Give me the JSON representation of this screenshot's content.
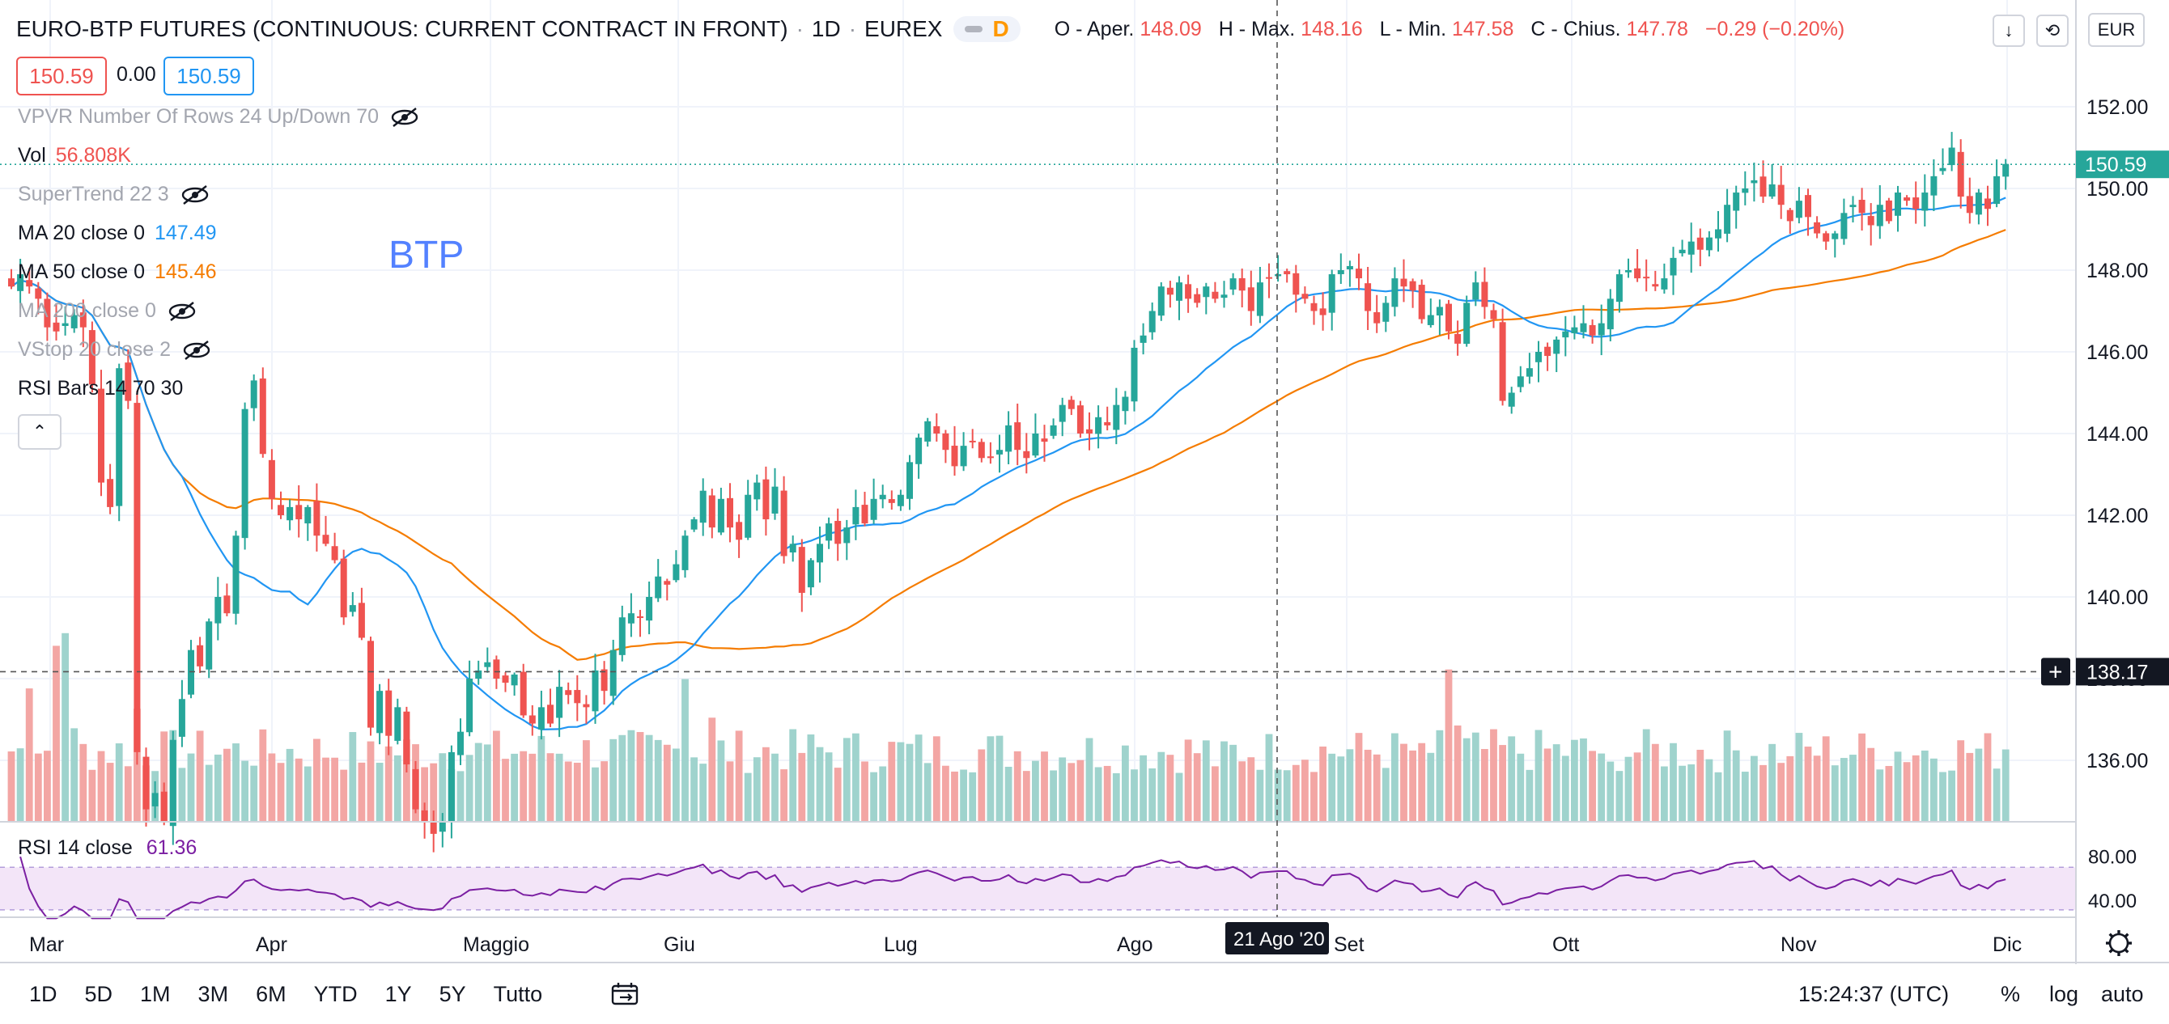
{
  "header": {
    "symbol": "EURO-BTP FUTURES (CONTINUOUS: CURRENT CONTRACT IN FRONT)",
    "interval": "1D",
    "exchange": "EUREX",
    "market_status": "D",
    "ohlc": {
      "open_label": "O - Aper.",
      "open": "148.09",
      "high_label": "H - Max.",
      "high": "148.16",
      "low_label": "L - Min.",
      "low": "147.58",
      "close_label": "C - Chius.",
      "close": "147.78",
      "change": "−0.29 (−0.20%)"
    }
  },
  "toolbar": {
    "currency": "EUR",
    "download_icon": "arrow-down-icon",
    "replay_icon": "replay-icon"
  },
  "order": {
    "sell_price": "150.59",
    "spread": "0.00",
    "buy_price": "150.59"
  },
  "indicators": {
    "vpvr": "VPVR Number Of Rows 24 Up/Down 70",
    "vol_label": "Vol",
    "vol_value": "56.808K",
    "supertrend": "SuperTrend 22 3",
    "ma20_label": "MA 20 close 0",
    "ma20_value": "147.49",
    "ma50_label": "MA 50 close 0",
    "ma50_value": "145.46",
    "ma200_label": "MA 200 close 0",
    "vstop_label": "VStop 20 close 2",
    "rsibars_label": "RSI Bars 14 70 30",
    "collapse_icon": "chevron-up-icon"
  },
  "drawing_text": "BTP",
  "rsi": {
    "label": "RSI 14 close",
    "value": "61.36"
  },
  "bottom_bar": {
    "timeframes": [
      "1D",
      "5D",
      "1M",
      "3M",
      "6M",
      "YTD",
      "1Y",
      "5Y",
      "Tutto"
    ],
    "calendar_icon": "calendar-range-icon",
    "clock": "15:24:37 (UTC)",
    "percent": "%",
    "log": "log",
    "auto": "auto"
  },
  "colors": {
    "up": "#26a69a",
    "down": "#ef5350",
    "ma20": "#2196f3",
    "ma50": "#f57c00",
    "rsi": "#7b1fa2",
    "vol_up": "#9fd3cd",
    "vol_down": "#f3a6a4"
  },
  "chart_data": {
    "type": "candlestick",
    "x_ticks": [
      "Mar",
      "Apr",
      "Maggio",
      "Giu",
      "Lug",
      "Ago",
      "Set",
      "Ott",
      "Nov",
      "Dic"
    ],
    "y_ticks": [
      "136.00",
      "138.00",
      "140.00",
      "142.00",
      "144.00",
      "146.00",
      "148.00",
      "150.00",
      "152.00"
    ],
    "ylim": [
      134.5,
      153.2
    ],
    "last_price": "150.59",
    "crosshair_price": "138.17",
    "crosshair_date": "21 Ago '20",
    "rsi_ticks": [
      "80.00",
      "40.00"
    ],
    "rsi_levels": [
      70,
      30
    ],
    "rsi_range": [
      20,
      90
    ],
    "closes": [
      147.6,
      147.9,
      147.6,
      147.3,
      146.6,
      146.5,
      146.7,
      146.9,
      146.6,
      145.2,
      142.8,
      142.2,
      145.6,
      144.8,
      136.2,
      134.8,
      135.2,
      134.5,
      136.5,
      137.5,
      138.7,
      138.3,
      139.4,
      140.0,
      139.6,
      141.5,
      144.6,
      145.3,
      143.5,
      142.4,
      142.0,
      142.2,
      141.9,
      142.2,
      141.5,
      141.3,
      140.9,
      139.5,
      139.8,
      139.0,
      136.8,
      137.7,
      136.6,
      137.3,
      135.9,
      134.8,
      134.5,
      134.2,
      134.5,
      136.2,
      136.7,
      138.0,
      138.2,
      138.4,
      138.0,
      137.9,
      138.1,
      137.1,
      136.9,
      137.3,
      136.9,
      137.8,
      137.6,
      137.4,
      137.3,
      138.2,
      137.7,
      138.7,
      139.5,
      139.6,
      139.5,
      140.0,
      140.5,
      140.3,
      140.8,
      141.5,
      141.9,
      142.6,
      141.7,
      142.4,
      141.7,
      141.4,
      142.5,
      142.8,
      141.9,
      142.7,
      141.0,
      141.3,
      140.1,
      140.9,
      141.3,
      141.8,
      141.3,
      141.7,
      142.2,
      141.8,
      142.4,
      142.5,
      142.3,
      142.5,
      143.3,
      143.9,
      144.3,
      144.0,
      143.6,
      143.2,
      143.7,
      143.8,
      143.4,
      143.4,
      143.6,
      144.2,
      143.6,
      143.4,
      144.0,
      143.8,
      144.2,
      144.7,
      144.6,
      144.0,
      144.0,
      144.4,
      144.2,
      144.7,
      144.9,
      146.1,
      146.4,
      147.0,
      147.6,
      147.4,
      147.7,
      147.3,
      147.2,
      147.6,
      147.3,
      147.4,
      147.8,
      147.5,
      147.0,
      147.7,
      147.8,
      147.9,
      147.9,
      147.4,
      147.3,
      147.0,
      146.9,
      147.9,
      148.0,
      148.1,
      147.8,
      147.0,
      146.7,
      147.2,
      147.8,
      147.6,
      147.5,
      146.8,
      146.9,
      147.1,
      146.5,
      146.2,
      147.2,
      147.7,
      147.1,
      146.8,
      144.8,
      145.0,
      145.4,
      145.6,
      146.0,
      145.9,
      146.3,
      146.5,
      146.6,
      146.7,
      146.4,
      146.7,
      147.3,
      147.9,
      148.0,
      147.8,
      147.8,
      147.6,
      147.8,
      148.3,
      148.5,
      148.7,
      148.5,
      148.8,
      149.0,
      149.6,
      149.9,
      150.0,
      150.2,
      149.8,
      150.1,
      149.6,
      149.2,
      149.7,
      149.3,
      148.9,
      148.7,
      148.9,
      149.4,
      149.6,
      149.4,
      149.1,
      149.6,
      149.2,
      149.9,
      149.7,
      149.5,
      149.9,
      150.3,
      150.5,
      151.0,
      149.8,
      149.4,
      149.9,
      149.5,
      150.3,
      150.6
    ]
  }
}
